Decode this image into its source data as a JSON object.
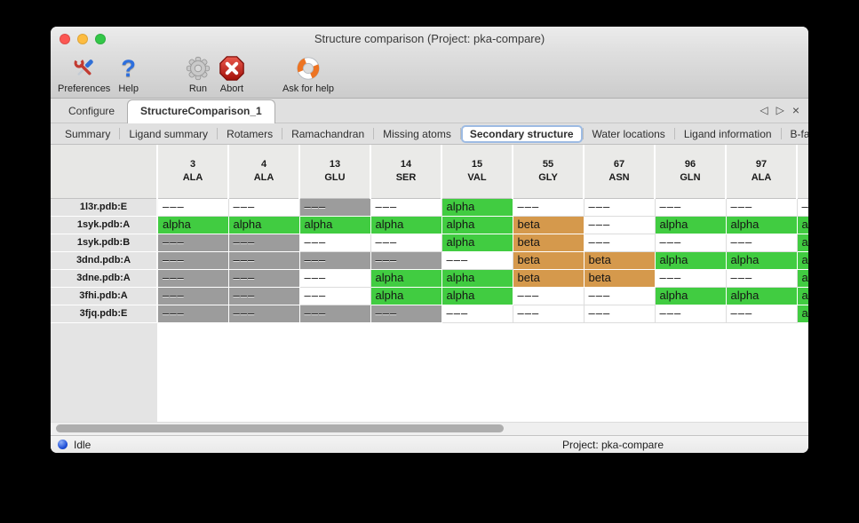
{
  "window": {
    "title": "Structure comparison (Project: pka-compare)",
    "traffic_lights": [
      {
        "name": "close",
        "color": "#FC5753"
      },
      {
        "name": "minimize",
        "color": "#FDBC40"
      },
      {
        "name": "zoom",
        "color": "#33C748"
      }
    ]
  },
  "toolbar": {
    "items": [
      {
        "label": "Preferences",
        "icon": "tools-icon"
      },
      {
        "label": "Help",
        "icon": "question-mark-icon"
      },
      {
        "label": "Run",
        "icon": "gear-icon"
      },
      {
        "label": "Abort",
        "icon": "stop-x-icon"
      },
      {
        "label": "Ask for help",
        "icon": "lifebuoy-icon"
      }
    ]
  },
  "main_tabs": {
    "tabs": [
      {
        "label": "Configure",
        "active": false
      },
      {
        "label": "StructureComparison_1",
        "active": true
      }
    ],
    "controls": {
      "prev": "◁",
      "next": "▷",
      "close": "×"
    }
  },
  "sub_tabs": {
    "tabs": [
      "Summary",
      "Ligand summary",
      "Rotamers",
      "Ramachandran",
      "Missing atoms",
      "Secondary structure",
      "Water locations",
      "Ligand information",
      "B-factors"
    ],
    "active": "Secondary structure",
    "controls": {
      "prev": "◁",
      "next": "▷"
    }
  },
  "table": {
    "columns": [
      {
        "num": "3",
        "res": "ALA"
      },
      {
        "num": "4",
        "res": "ALA"
      },
      {
        "num": "13",
        "res": "GLU"
      },
      {
        "num": "14",
        "res": "SER"
      },
      {
        "num": "15",
        "res": "VAL"
      },
      {
        "num": "55",
        "res": "GLY"
      },
      {
        "num": "67",
        "res": "ASN"
      },
      {
        "num": "96",
        "res": "GLN"
      },
      {
        "num": "97",
        "res": "ALA"
      },
      {
        "num": "",
        "res": ""
      }
    ],
    "rows": [
      {
        "label": "1l3r.pdb:E",
        "cells": [
          "w",
          "w",
          "g",
          "w",
          "a",
          "w",
          "w",
          "w",
          "w",
          "w"
        ]
      },
      {
        "label": "1syk.pdb:A",
        "cells": [
          "a",
          "a",
          "a",
          "a",
          "a",
          "b",
          "w",
          "a",
          "a",
          "a"
        ]
      },
      {
        "label": "1syk.pdb:B",
        "cells": [
          "g",
          "g",
          "w",
          "w",
          "a",
          "b",
          "w",
          "w",
          "w",
          "a"
        ]
      },
      {
        "label": "3dnd.pdb:A",
        "cells": [
          "g",
          "g",
          "g",
          "g",
          "w",
          "b",
          "b",
          "a",
          "a",
          "a"
        ]
      },
      {
        "label": "3dne.pdb:A",
        "cells": [
          "g",
          "g",
          "w",
          "a",
          "a",
          "b",
          "b",
          "w",
          "w",
          "a"
        ]
      },
      {
        "label": "3fhi.pdb:A",
        "cells": [
          "g",
          "g",
          "w",
          "a",
          "a",
          "w",
          "w",
          "a",
          "a",
          "a"
        ]
      },
      {
        "label": "3fjq.pdb:E",
        "cells": [
          "g",
          "g",
          "g",
          "g",
          "w",
          "w",
          "w",
          "w",
          "w",
          "a"
        ]
      }
    ],
    "cell_types": {
      "a": {
        "text": "alpha",
        "bg": "#41CC41",
        "grid": "#FFFFFF"
      },
      "b": {
        "text": "beta",
        "bg": "#D5994C",
        "grid": "#FFFFFF"
      },
      "g": {
        "text": "–––",
        "bg": "#9C9C9C",
        "grid": "#FFFFFF"
      },
      "w": {
        "text": "–––",
        "bg": "#FFFFFF",
        "grid": "#DCDCDC"
      }
    }
  },
  "status_bar": {
    "state": "Idle",
    "project": "Project: pka-compare"
  }
}
